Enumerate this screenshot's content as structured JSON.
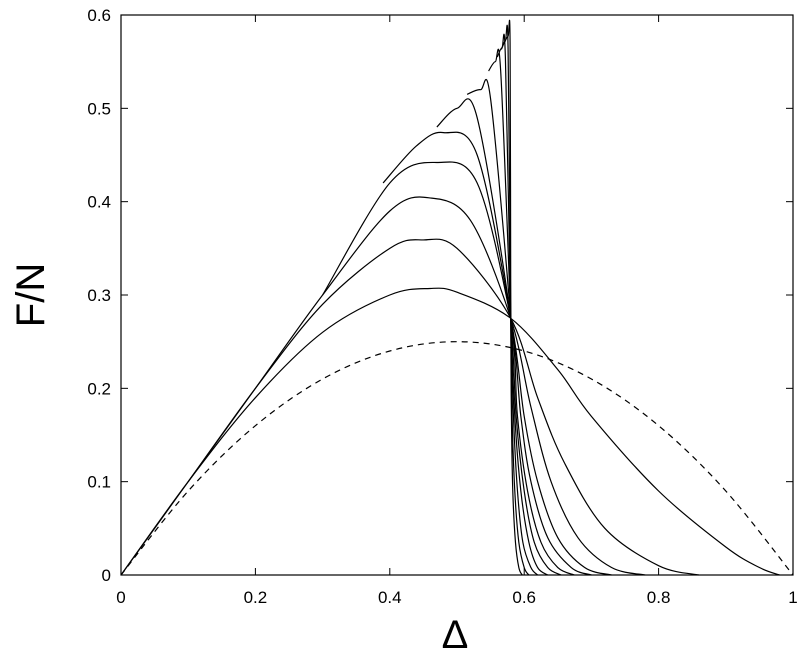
{
  "chart_data": {
    "type": "line",
    "xlabel": "Δ",
    "ylabel": "F/N",
    "xlim": [
      0,
      1
    ],
    "ylim": [
      0,
      0.6
    ],
    "xticks": [
      0,
      0.2,
      0.4,
      0.6,
      0.8,
      1
    ],
    "xtick_labels": [
      "0",
      "0.2",
      "0.4",
      "0.6",
      "0.8",
      "1"
    ],
    "yticks": [
      0,
      0.1,
      0.2,
      0.3,
      0.4,
      0.5,
      0.6
    ],
    "ytick_labels": [
      "0",
      "0.1",
      "0.2",
      "0.3",
      "0.4",
      "0.5",
      "0.6"
    ],
    "grid": false,
    "legend": "none",
    "line_color": "#000000",
    "series": [
      {
        "style": "dashed",
        "x": [
          0,
          0.1,
          0.2,
          0.3,
          0.4,
          0.5,
          0.6,
          0.7,
          0.8,
          0.9,
          1.0
        ],
        "y": [
          0,
          0.09,
          0.16,
          0.21,
          0.24,
          0.25,
          0.24,
          0.21,
          0.16,
          0.09,
          0
        ]
      },
      {
        "style": "solid",
        "x": [
          0,
          0.1,
          0.2,
          0.3,
          0.4,
          0.46,
          0.5,
          0.58,
          0.65,
          0.7,
          0.8,
          0.9,
          0.95,
          0.98
        ],
        "y": [
          0,
          0.1,
          0.19,
          0.26,
          0.3,
          0.307,
          0.303,
          0.275,
          0.22,
          0.17,
          0.09,
          0.03,
          0.008,
          0
        ]
      },
      {
        "style": "solid",
        "x": [
          0,
          0.1,
          0.2,
          0.3,
          0.4,
          0.45,
          0.5,
          0.58,
          0.62,
          0.66,
          0.72,
          0.8,
          0.86
        ],
        "y": [
          0,
          0.1,
          0.2,
          0.29,
          0.35,
          0.359,
          0.35,
          0.275,
          0.19,
          0.12,
          0.05,
          0.01,
          0
        ]
      },
      {
        "style": "solid",
        "x": [
          0.1,
          0.2,
          0.3,
          0.4,
          0.46,
          0.52,
          0.58,
          0.61,
          0.64,
          0.68,
          0.73,
          0.78
        ],
        "y": [
          0.1,
          0.2,
          0.3,
          0.39,
          0.404,
          0.38,
          0.275,
          0.18,
          0.1,
          0.04,
          0.008,
          0
        ]
      },
      {
        "style": "solid",
        "x": [
          0.3,
          0.4,
          0.47,
          0.53,
          0.58,
          0.6,
          0.62,
          0.65,
          0.69,
          0.73
        ],
        "y": [
          0.3,
          0.42,
          0.442,
          0.42,
          0.275,
          0.17,
          0.1,
          0.04,
          0.008,
          0
        ]
      },
      {
        "style": "solid",
        "x": [
          0.39,
          0.44,
          0.48,
          0.53,
          0.58,
          0.595,
          0.61,
          0.635,
          0.67,
          0.7
        ],
        "y": [
          0.42,
          0.46,
          0.474,
          0.45,
          0.275,
          0.17,
          0.1,
          0.04,
          0.008,
          0
        ]
      },
      {
        "style": "solid",
        "x": [
          0.47,
          0.5,
          0.53,
          0.58,
          0.59,
          0.605,
          0.625,
          0.65,
          0.675
        ],
        "y": [
          0.48,
          0.5,
          0.49,
          0.275,
          0.17,
          0.09,
          0.035,
          0.008,
          0
        ]
      },
      {
        "style": "solid",
        "x": [
          0.515,
          0.535,
          0.55,
          0.58,
          0.588,
          0.6,
          0.615,
          0.635,
          0.655
        ],
        "y": [
          0.515,
          0.52,
          0.51,
          0.275,
          0.17,
          0.09,
          0.035,
          0.008,
          0
        ]
      },
      {
        "style": "solid",
        "x": [
          0.547,
          0.557,
          0.565,
          0.58,
          0.586,
          0.595,
          0.607,
          0.62,
          0.635
        ],
        "y": [
          0.54,
          0.55,
          0.54,
          0.275,
          0.17,
          0.09,
          0.035,
          0.008,
          0
        ]
      },
      {
        "style": "solid",
        "x": [
          0.56,
          0.567,
          0.572,
          0.58,
          0.584,
          0.59,
          0.598,
          0.61,
          0.62
        ],
        "y": [
          0.555,
          0.565,
          0.555,
          0.275,
          0.17,
          0.09,
          0.035,
          0.008,
          0
        ]
      },
      {
        "style": "solid",
        "x": [
          0.566,
          0.572,
          0.576,
          0.58,
          0.582,
          0.586,
          0.592,
          0.6,
          0.607
        ],
        "y": [
          0.563,
          0.572,
          0.565,
          0.275,
          0.17,
          0.09,
          0.035,
          0.008,
          0
        ]
      },
      {
        "style": "solid",
        "x": [
          0.57,
          0.576,
          0.579,
          0.58,
          0.581,
          0.583,
          0.587,
          0.592,
          0.597
        ],
        "y": [
          0.57,
          0.577,
          0.57,
          0.275,
          0.17,
          0.09,
          0.035,
          0.008,
          0
        ]
      }
    ]
  }
}
